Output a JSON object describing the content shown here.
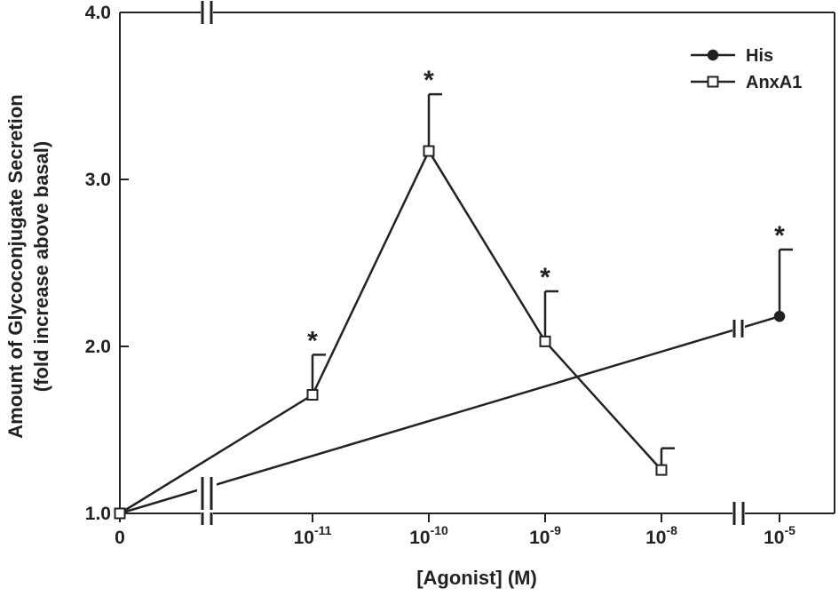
{
  "chart_data": {
    "type": "line",
    "ylabel_line1": "Amount of Glycoconjugate Secretion",
    "ylabel_line2": "(fold increase above basal)",
    "xlabel": "[Agonist] (M)",
    "ylim": [
      1.0,
      4.0
    ],
    "y_ticks": [
      "1.0",
      "2.0",
      "3.0",
      "4.0"
    ],
    "x_tick_labels": [
      {
        "base": "0",
        "exp": ""
      },
      {
        "base": "10",
        "exp": "-11"
      },
      {
        "base": "10",
        "exp": "-10"
      },
      {
        "base": "10",
        "exp": "-9"
      },
      {
        "base": "10",
        "exp": "-8"
      },
      {
        "base": "10",
        "exp": "-5"
      }
    ],
    "axis_breaks": true,
    "legend_position": "top-right",
    "series": [
      {
        "name": "His",
        "marker": "filled-circle",
        "points": [
          {
            "x": "0",
            "y": 1.0,
            "err": 0,
            "sig": ""
          },
          {
            "x": "10-5",
            "y": 2.18,
            "err": 0.4,
            "sig": "*"
          }
        ]
      },
      {
        "name": "AnxA1",
        "marker": "open-square",
        "points": [
          {
            "x": "0",
            "y": 1.0,
            "err": 0,
            "sig": ""
          },
          {
            "x": "10-11",
            "y": 1.71,
            "err": 0.24,
            "sig": "*"
          },
          {
            "x": "10-10",
            "y": 3.17,
            "err": 0.34,
            "sig": "*"
          },
          {
            "x": "10-9",
            "y": 2.03,
            "err": 0.3,
            "sig": "*"
          },
          {
            "x": "10-8",
            "y": 1.26,
            "err": 0.13,
            "sig": ""
          }
        ]
      }
    ],
    "colors": {
      "ink": "#222222",
      "background": "#ffffff"
    }
  }
}
